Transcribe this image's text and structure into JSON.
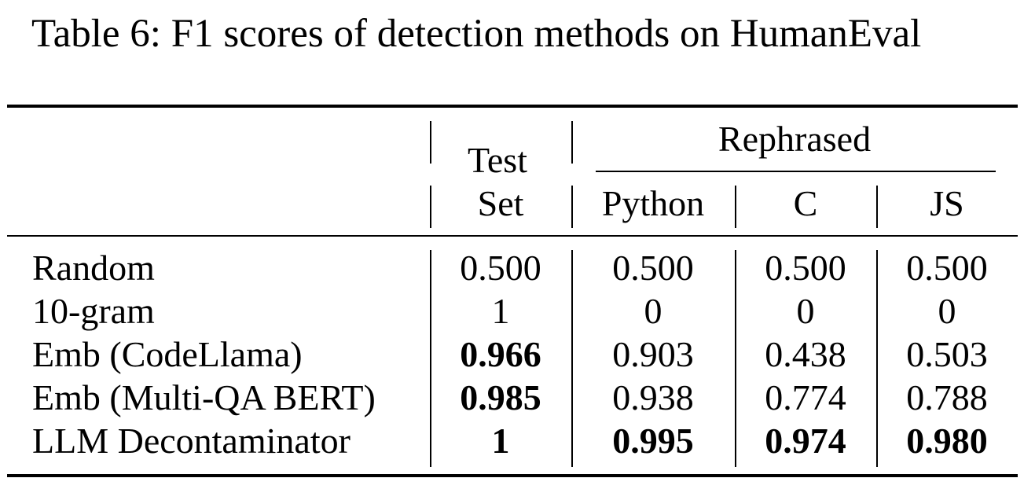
{
  "caption": "Table 6: F1 scores of detection methods on HumanEval",
  "table": {
    "header": {
      "test_set_line1": "Test",
      "test_set_line2": "Set",
      "group": "Rephrased",
      "sub": [
        "Python",
        "C",
        "JS"
      ]
    },
    "rows": [
      {
        "method": "Random",
        "values": [
          "0.500",
          "0.500",
          "0.500",
          "0.500"
        ],
        "bold": [
          false,
          false,
          false,
          false
        ]
      },
      {
        "method": "10-gram",
        "values": [
          "1",
          "0",
          "0",
          "0"
        ],
        "bold": [
          false,
          false,
          false,
          false
        ]
      },
      {
        "method": "Emb (CodeLlama)",
        "values": [
          "0.966",
          "0.903",
          "0.438",
          "0.503"
        ],
        "bold": [
          true,
          false,
          false,
          false
        ]
      },
      {
        "method": "Emb (Multi-QA BERT)",
        "values": [
          "0.985",
          "0.938",
          "0.774",
          "0.788"
        ],
        "bold": [
          true,
          false,
          false,
          false
        ]
      },
      {
        "method": "LLM Decontaminator",
        "values": [
          "1",
          "0.995",
          "0.974",
          "0.980"
        ],
        "bold": [
          true,
          true,
          true,
          true
        ]
      }
    ]
  }
}
